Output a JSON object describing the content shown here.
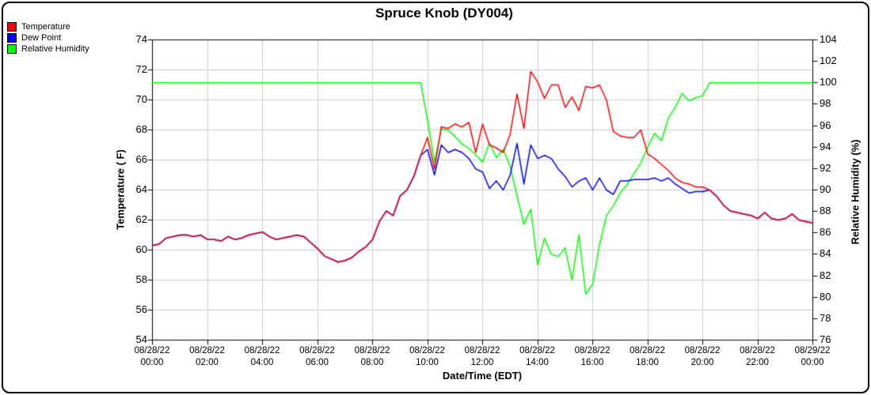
{
  "page": {
    "title": "Spruce Knob (DY004)",
    "background": "#ffffff",
    "border_color": "#000000"
  },
  "legend": {
    "items": [
      {
        "label": "Temperature",
        "color": "#ff0000"
      },
      {
        "label": "Dew Point",
        "color": "#0000ff"
      },
      {
        "label": "Relative Humidity",
        "color": "#00ff00"
      }
    ]
  },
  "chart_data": {
    "type": "line",
    "title": "Spruce Knob (DY004)",
    "grid": true,
    "gridline_color": "#cccccc",
    "frame_color": "#000000",
    "merged_line_color": "#c81148",
    "start": "08/28/22 00:00",
    "end": "08/29/22 00:00",
    "interval_minutes": 15,
    "x_axis": {
      "label": "Date/Time (EDT)",
      "tick_labels": [
        {
          "date": "08/28/22",
          "time": "00:00"
        },
        {
          "date": "08/28/22",
          "time": "02:00"
        },
        {
          "date": "08/28/22",
          "time": "04:00"
        },
        {
          "date": "08/28/22",
          "time": "06:00"
        },
        {
          "date": "08/28/22",
          "time": "08:00"
        },
        {
          "date": "08/28/22",
          "time": "10:00"
        },
        {
          "date": "08/28/22",
          "time": "12:00"
        },
        {
          "date": "08/28/22",
          "time": "14:00"
        },
        {
          "date": "08/28/22",
          "time": "16:00"
        },
        {
          "date": "08/28/22",
          "time": "18:00"
        },
        {
          "date": "08/28/22",
          "time": "20:00"
        },
        {
          "date": "08/28/22",
          "time": "22:00"
        },
        {
          "date": "08/29/22",
          "time": "00:00"
        }
      ]
    },
    "y_left": {
      "label": "Temperature ( F)",
      "min": 54,
      "max": 74,
      "step": 2,
      "ticks": [
        54,
        56,
        58,
        60,
        62,
        64,
        66,
        68,
        70,
        72,
        74
      ]
    },
    "y_right": {
      "label": "Relative Humidity (%)",
      "min": 76,
      "max": 104,
      "step": 2,
      "ticks": [
        76,
        78,
        80,
        82,
        84,
        86,
        88,
        90,
        92,
        94,
        96,
        98,
        100,
        102,
        104
      ]
    },
    "series": [
      {
        "name": "Temperature",
        "axis": "left",
        "color": "#ff0000",
        "values": [
          60.3,
          60.4,
          60.8,
          60.9,
          61.0,
          61.0,
          60.9,
          61.0,
          60.7,
          60.7,
          60.6,
          60.9,
          60.7,
          60.8,
          61.0,
          61.1,
          61.2,
          60.9,
          60.7,
          60.8,
          60.9,
          61.0,
          60.9,
          60.5,
          60.1,
          59.6,
          59.4,
          59.2,
          59.3,
          59.5,
          59.9,
          60.2,
          60.7,
          61.9,
          62.6,
          62.3,
          63.6,
          64.0,
          64.9,
          66.3,
          67.5,
          65.4,
          68.2,
          68.1,
          68.4,
          68.2,
          68.5,
          66.5,
          68.4,
          67.0,
          66.8,
          66.5,
          67.7,
          70.4,
          68.1,
          71.9,
          71.2,
          70.1,
          71.0,
          71.0,
          69.5,
          70.2,
          69.3,
          70.9,
          70.8,
          71.0,
          70.0,
          67.9,
          67.6,
          67.5,
          67.5,
          68.0,
          66.4,
          66.1,
          65.7,
          65.3,
          64.8,
          64.5,
          64.4,
          64.2,
          64.2,
          64.0,
          63.6,
          63.0,
          62.6,
          62.5,
          62.4,
          62.3,
          62.1,
          62.5,
          62.1,
          62.0,
          62.1,
          62.4,
          62.0,
          61.9,
          61.8
        ]
      },
      {
        "name": "Dew Point",
        "axis": "left",
        "color": "#0000ff",
        "values": [
          60.3,
          60.4,
          60.8,
          60.9,
          61.0,
          61.0,
          60.9,
          61.0,
          60.7,
          60.7,
          60.6,
          60.9,
          60.7,
          60.8,
          61.0,
          61.1,
          61.2,
          60.9,
          60.7,
          60.8,
          60.9,
          61.0,
          60.9,
          60.5,
          60.1,
          59.6,
          59.4,
          59.2,
          59.3,
          59.5,
          59.9,
          60.2,
          60.7,
          61.9,
          62.6,
          62.3,
          63.6,
          64.0,
          64.9,
          66.3,
          66.7,
          65.0,
          67.0,
          66.5,
          66.7,
          66.5,
          66.1,
          65.4,
          65.2,
          64.1,
          64.6,
          64.0,
          65.0,
          67.1,
          64.4,
          67.0,
          66.1,
          66.3,
          66.1,
          65.4,
          64.9,
          64.2,
          64.6,
          64.8,
          64.0,
          64.8,
          64.0,
          63.7,
          64.6,
          64.6,
          64.7,
          64.7,
          64.7,
          64.8,
          64.6,
          64.8,
          64.4,
          64.1,
          63.8,
          63.9,
          63.9,
          64.0,
          63.6,
          63.0,
          62.6,
          62.5,
          62.4,
          62.3,
          62.1,
          62.5,
          62.1,
          62.0,
          62.1,
          62.4,
          62.0,
          61.9,
          61.8
        ]
      },
      {
        "name": "Relative Humidity",
        "axis": "right",
        "color": "#00ff00",
        "values": [
          100,
          100,
          100,
          100,
          100,
          100,
          100,
          100,
          100,
          100,
          100,
          100,
          100,
          100,
          100,
          100,
          100,
          100,
          100,
          100,
          100,
          100,
          100,
          100,
          100,
          100,
          100,
          100,
          100,
          100,
          100,
          100,
          100,
          100,
          100,
          100,
          100,
          100,
          100,
          100,
          96.5,
          92.6,
          95.7,
          95.6,
          95.0,
          94.3,
          93.9,
          93.3,
          92.6,
          94.4,
          93.0,
          93.8,
          92.2,
          89.5,
          86.8,
          88.2,
          83.0,
          85.5,
          84.0,
          83.8,
          84.6,
          81.6,
          85.8,
          80.3,
          81.2,
          84.9,
          87.6,
          88.5,
          89.7,
          90.5,
          91.5,
          92.5,
          94.0,
          95.3,
          94.6,
          96.7,
          97.7,
          99.0,
          98.3,
          98.6,
          98.8,
          100,
          100,
          100,
          100,
          100,
          100,
          100,
          100,
          100,
          100,
          100,
          100,
          100,
          100,
          100,
          100
        ]
      }
    ]
  }
}
